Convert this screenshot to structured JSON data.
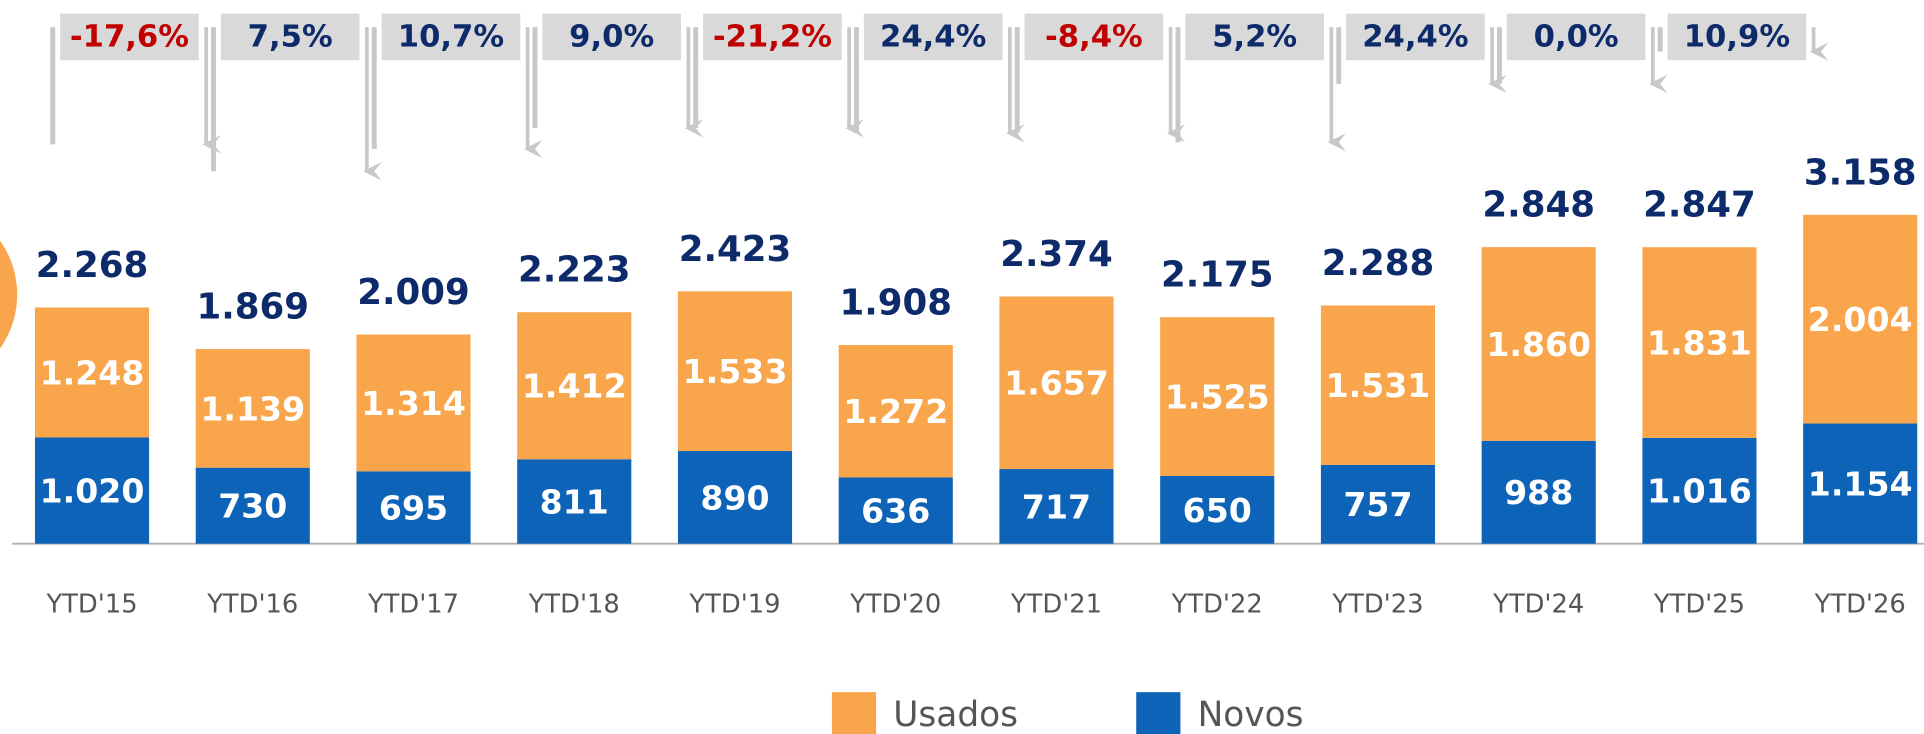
{
  "chart_data": {
    "type": "stacked_bar",
    "categories": [
      "YTD'15",
      "YTD'16",
      "YTD'17",
      "YTD'18",
      "YTD'19",
      "YTD'20",
      "YTD'21",
      "YTD'22",
      "YTD'23",
      "YTD'24",
      "YTD'25",
      "YTD'26"
    ],
    "series": [
      {
        "name": "Novos",
        "color": "#0d63b8",
        "values": [
          1020,
          730,
          695,
          811,
          890,
          636,
          717,
          650,
          757,
          988,
          1016,
          1154
        ],
        "value_labels": [
          "1.020",
          "730",
          "695",
          "811",
          "890",
          "636",
          "717",
          "650",
          "757",
          "988",
          "1.016",
          "1.154"
        ]
      },
      {
        "name": "Usados",
        "color": "#f9a54b",
        "values": [
          1248,
          1139,
          1314,
          1412,
          1533,
          1272,
          1657,
          1525,
          1531,
          1860,
          1831,
          2004
        ],
        "value_labels": [
          "1.248",
          "1.139",
          "1.314",
          "1.412",
          "1.533",
          "1.272",
          "1.657",
          "1.525",
          "1.531",
          "1.860",
          "1.831",
          "2.004"
        ]
      }
    ],
    "totals": {
      "values": [
        2268,
        1869,
        2009,
        2223,
        2423,
        1908,
        2374,
        2175,
        2288,
        2848,
        2847,
        3158
      ],
      "value_labels": [
        "2.268",
        "1.869",
        "2.009",
        "2.223",
        "2.423",
        "1.908",
        "2.374",
        "2.175",
        "2.288",
        "2.848",
        "2.847",
        "3.158"
      ],
      "color": "#0d2a6b"
    },
    "changes": {
      "values": [
        -17.6,
        7.5,
        10.7,
        9.0,
        -21.2,
        24.4,
        -8.4,
        5.2,
        24.4,
        0.0,
        10.9
      ],
      "value_labels": [
        "-17,6%",
        "7,5%",
        "10,7%",
        "9,0%",
        "-21,2%",
        "24,4%",
        "-8,4%",
        "5,2%",
        "24,4%",
        "0,0%",
        "10,9%"
      ],
      "positive_color": "#0d2a6b",
      "negative_color": "#c00000"
    },
    "legend_order": [
      1,
      0
    ]
  }
}
